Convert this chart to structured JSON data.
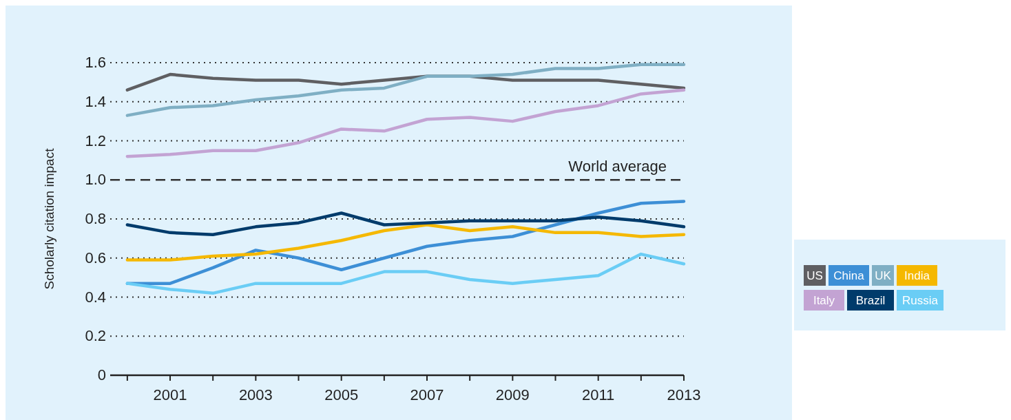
{
  "chart_data": {
    "type": "line",
    "ylabel": "Scholarly citation impact",
    "x": [
      2000,
      2001,
      2002,
      2003,
      2004,
      2005,
      2006,
      2007,
      2008,
      2009,
      2010,
      2011,
      2012,
      2013
    ],
    "xlim": [
      1999.6,
      2013
    ],
    "xticks": [
      {
        "value": 2000,
        "label": null
      },
      2001,
      {
        "value": 2002,
        "label": null
      },
      2003,
      {
        "value": 2004,
        "label": null
      },
      2005,
      {
        "value": 2006,
        "label": null
      },
      2007,
      {
        "value": 2008,
        "label": null
      },
      2009,
      {
        "value": 2010,
        "label": null
      },
      2011,
      {
        "value": 2012,
        "label": null
      },
      2013
    ],
    "ylim": [
      0,
      1.6
    ],
    "yticks": [
      0,
      0.2,
      0.4,
      0.6,
      0.8,
      {
        "value": 1,
        "label": "1.0"
      },
      1.2,
      1.4,
      1.6
    ],
    "grid": "y",
    "legend": "right",
    "line_style": "solid",
    "marker": "none",
    "ref_lines": [
      {
        "axis": "y",
        "value": 1.0,
        "label": "World average",
        "line_style": "dashed",
        "color": "#333333"
      }
    ],
    "series": [
      {
        "name": "US",
        "color": "#5f5f62",
        "values": [
          1.46,
          1.54,
          1.52,
          1.51,
          1.51,
          1.49,
          1.51,
          1.53,
          1.53,
          1.51,
          1.51,
          1.51,
          1.49,
          1.47
        ]
      },
      {
        "name": "China",
        "color": "#3d8fd6",
        "values": [
          0.47,
          0.47,
          0.55,
          0.64,
          0.6,
          0.54,
          0.6,
          0.66,
          0.69,
          0.71,
          0.77,
          0.83,
          0.88,
          0.89
        ]
      },
      {
        "name": "UK",
        "color": "#7fafc4",
        "values": [
          1.33,
          1.37,
          1.38,
          1.41,
          1.43,
          1.46,
          1.47,
          1.53,
          1.53,
          1.54,
          1.57,
          1.57,
          1.59,
          1.59
        ]
      },
      {
        "name": "India",
        "color": "#f5b800",
        "values": [
          0.59,
          0.59,
          0.61,
          0.62,
          0.65,
          0.69,
          0.74,
          0.77,
          0.74,
          0.76,
          0.73,
          0.73,
          0.71,
          0.72
        ]
      },
      {
        "name": "Italy",
        "color": "#c3a3d3",
        "values": [
          1.12,
          1.13,
          1.15,
          1.15,
          1.19,
          1.26,
          1.25,
          1.31,
          1.32,
          1.3,
          1.35,
          1.38,
          1.44,
          1.46
        ]
      },
      {
        "name": "Brazil",
        "color": "#003b6b",
        "values": [
          0.77,
          0.73,
          0.72,
          0.76,
          0.78,
          0.83,
          0.77,
          0.78,
          0.79,
          0.79,
          0.79,
          0.81,
          0.79,
          0.76
        ]
      },
      {
        "name": "Russia",
        "color": "#6acdf5",
        "values": [
          0.47,
          0.44,
          0.42,
          0.47,
          0.47,
          0.47,
          0.53,
          0.53,
          0.49,
          0.47,
          0.49,
          0.51,
          0.62,
          0.57
        ]
      }
    ]
  }
}
